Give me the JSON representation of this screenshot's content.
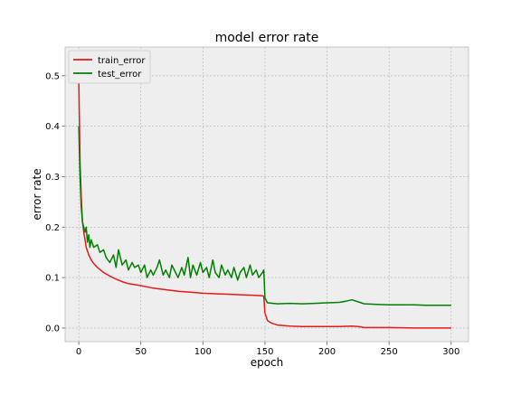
{
  "chart_data": {
    "type": "line",
    "title": "model error rate",
    "xlabel": "epoch",
    "ylabel": "error rate",
    "xlim": [
      -11,
      314
    ],
    "ylim": [
      -0.027,
      0.557
    ],
    "xticks": [
      0,
      50,
      100,
      150,
      200,
      250,
      300
    ],
    "yticks": [
      0.0,
      0.1,
      0.2,
      0.3,
      0.4,
      0.5
    ],
    "ytick_labels": [
      "0.0",
      "0.1",
      "0.2",
      "0.3",
      "0.4",
      "0.5"
    ],
    "grid": true,
    "legend_position": "upper-left",
    "series": [
      {
        "name": "train_error",
        "color": "#e41a1c",
        "points": [
          [
            0,
            0.49
          ],
          [
            1,
            0.33
          ],
          [
            2,
            0.26
          ],
          [
            3,
            0.21
          ],
          [
            4,
            0.19
          ],
          [
            5,
            0.175
          ],
          [
            6,
            0.16
          ],
          [
            8,
            0.145
          ],
          [
            10,
            0.135
          ],
          [
            12,
            0.128
          ],
          [
            15,
            0.12
          ],
          [
            20,
            0.11
          ],
          [
            25,
            0.103
          ],
          [
            30,
            0.097
          ],
          [
            35,
            0.092
          ],
          [
            40,
            0.088
          ],
          [
            50,
            0.084
          ],
          [
            60,
            0.079
          ],
          [
            70,
            0.076
          ],
          [
            80,
            0.073
          ],
          [
            90,
            0.071
          ],
          [
            100,
            0.069
          ],
          [
            110,
            0.068
          ],
          [
            120,
            0.067
          ],
          [
            130,
            0.066
          ],
          [
            140,
            0.065
          ],
          [
            148,
            0.064
          ],
          [
            149,
            0.063
          ],
          [
            150,
            0.03
          ],
          [
            152,
            0.015
          ],
          [
            155,
            0.01
          ],
          [
            160,
            0.006
          ],
          [
            170,
            0.004
          ],
          [
            180,
            0.003
          ],
          [
            200,
            0.003
          ],
          [
            210,
            0.003
          ],
          [
            220,
            0.004
          ],
          [
            225,
            0.003
          ],
          [
            230,
            0.001
          ],
          [
            250,
            0.001
          ],
          [
            270,
            0.0
          ],
          [
            300,
            0.0
          ]
        ]
      },
      {
        "name": "test_error",
        "color": "#008000",
        "points": [
          [
            0,
            0.4
          ],
          [
            1,
            0.3
          ],
          [
            2,
            0.24
          ],
          [
            3,
            0.21
          ],
          [
            4,
            0.2
          ],
          [
            5,
            0.19
          ],
          [
            6,
            0.2
          ],
          [
            7,
            0.17
          ],
          [
            8,
            0.185
          ],
          [
            9,
            0.16
          ],
          [
            10,
            0.175
          ],
          [
            12,
            0.16
          ],
          [
            15,
            0.165
          ],
          [
            17,
            0.15
          ],
          [
            20,
            0.155
          ],
          [
            22,
            0.14
          ],
          [
            25,
            0.13
          ],
          [
            28,
            0.145
          ],
          [
            30,
            0.12
          ],
          [
            32,
            0.155
          ],
          [
            35,
            0.125
          ],
          [
            38,
            0.135
          ],
          [
            40,
            0.115
          ],
          [
            43,
            0.13
          ],
          [
            45,
            0.12
          ],
          [
            48,
            0.125
          ],
          [
            50,
            0.11
          ],
          [
            53,
            0.125
          ],
          [
            55,
            0.1
          ],
          [
            58,
            0.115
          ],
          [
            60,
            0.105
          ],
          [
            63,
            0.12
          ],
          [
            65,
            0.135
          ],
          [
            68,
            0.105
          ],
          [
            70,
            0.115
          ],
          [
            73,
            0.1
          ],
          [
            75,
            0.125
          ],
          [
            78,
            0.11
          ],
          [
            80,
            0.1
          ],
          [
            83,
            0.12
          ],
          [
            85,
            0.105
          ],
          [
            88,
            0.14
          ],
          [
            90,
            0.1
          ],
          [
            92,
            0.125
          ],
          [
            95,
            0.105
          ],
          [
            98,
            0.13
          ],
          [
            100,
            0.11
          ],
          [
            103,
            0.12
          ],
          [
            105,
            0.1
          ],
          [
            108,
            0.135
          ],
          [
            110,
            0.11
          ],
          [
            113,
            0.1
          ],
          [
            115,
            0.125
          ],
          [
            118,
            0.105
          ],
          [
            120,
            0.115
          ],
          [
            123,
            0.1
          ],
          [
            125,
            0.12
          ],
          [
            128,
            0.095
          ],
          [
            130,
            0.11
          ],
          [
            133,
            0.12
          ],
          [
            135,
            0.1
          ],
          [
            138,
            0.125
          ],
          [
            140,
            0.105
          ],
          [
            143,
            0.115
          ],
          [
            145,
            0.1
          ],
          [
            148,
            0.11
          ],
          [
            149,
            0.115
          ],
          [
            150,
            0.06
          ],
          [
            152,
            0.05
          ],
          [
            160,
            0.048
          ],
          [
            170,
            0.049
          ],
          [
            180,
            0.048
          ],
          [
            190,
            0.049
          ],
          [
            200,
            0.05
          ],
          [
            210,
            0.051
          ],
          [
            215,
            0.053
          ],
          [
            220,
            0.056
          ],
          [
            225,
            0.052
          ],
          [
            230,
            0.048
          ],
          [
            240,
            0.047
          ],
          [
            250,
            0.046
          ],
          [
            260,
            0.046
          ],
          [
            270,
            0.046
          ],
          [
            280,
            0.045
          ],
          [
            290,
            0.045
          ],
          [
            300,
            0.045
          ]
        ]
      }
    ]
  }
}
